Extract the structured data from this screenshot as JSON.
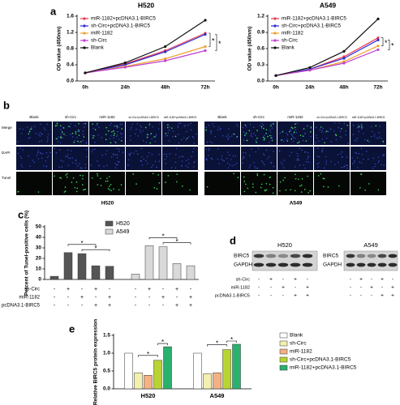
{
  "panel_labels": [
    "a",
    "b",
    "c",
    "d",
    "e"
  ],
  "chart_data": [
    {
      "type": "line",
      "title": "H520",
      "ylabel": "OD value (450nm)",
      "categories": [
        "0h",
        "24h",
        "48h",
        "72h"
      ],
      "ylim": [
        0,
        1.6
      ],
      "yticks": [
        {
          "value": 0,
          "label": "0.0"
        },
        {
          "value": 0.4,
          "label": "0.4"
        },
        {
          "value": 0.8,
          "label": "0.8"
        },
        {
          "value": 1.2,
          "label": "1.2"
        },
        {
          "value": 1.6,
          "label": "1.6"
        }
      ],
      "series": [
        {
          "name": "miR-1182+pcDNA3.1-BIRC5",
          "color": "#e8384f",
          "values": [
            0.2,
            0.42,
            0.75,
            1.18
          ]
        },
        {
          "name": "sh-Circ+pcDNA3.1-BIRC5",
          "color": "#2b2bd6",
          "values": [
            0.2,
            0.4,
            0.72,
            1.15
          ]
        },
        {
          "name": "miR-1182",
          "color": "#f0a030",
          "values": [
            0.2,
            0.36,
            0.55,
            0.85
          ]
        },
        {
          "name": "sh-Circ",
          "color": "#c040d0",
          "values": [
            0.2,
            0.34,
            0.5,
            0.75
          ]
        },
        {
          "name": "Blank",
          "color": "#111111",
          "values": [
            0.2,
            0.45,
            0.85,
            1.5
          ]
        }
      ],
      "annotations": [
        "*",
        "*"
      ]
    },
    {
      "type": "line",
      "title": "A549",
      "ylabel": "OD value (450nm)",
      "categories": [
        "0h",
        "24h",
        "48h",
        "72h"
      ],
      "ylim": [
        0,
        1.2
      ],
      "yticks": [
        {
          "value": 0,
          "label": "0.0"
        },
        {
          "value": 0.3,
          "label": "0.3"
        },
        {
          "value": 0.6,
          "label": "0.6"
        },
        {
          "value": 0.9,
          "label": "0.9"
        },
        {
          "value": 1.2,
          "label": "1.2"
        }
      ],
      "series": [
        {
          "name": "miR-1182+pcDNA3.1-BIRC5",
          "color": "#e8384f",
          "values": [
            0.1,
            0.22,
            0.45,
            0.8
          ]
        },
        {
          "name": "sh-Circ+pcDNA3.1-BIRC5",
          "color": "#2b2bd6",
          "values": [
            0.1,
            0.22,
            0.42,
            0.76
          ]
        },
        {
          "name": "miR-1182",
          "color": "#f0a030",
          "values": [
            0.1,
            0.2,
            0.36,
            0.65
          ]
        },
        {
          "name": "sh-Circ",
          "color": "#c040d0",
          "values": [
            0.1,
            0.2,
            0.33,
            0.58
          ]
        },
        {
          "name": "Blank",
          "color": "#111111",
          "values": [
            0.1,
            0.25,
            0.55,
            1.15
          ]
        }
      ],
      "annotations": [
        "*",
        "*"
      ]
    },
    {
      "type": "bar",
      "ylabel": "Percent of Tunel-positive cells (%)",
      "ylim": [
        0,
        50
      ],
      "yticks": [
        0,
        10,
        20,
        30,
        40,
        50
      ],
      "series": [
        {
          "name": "H520",
          "color": "#555555",
          "values": [
            3,
            25.5,
            24.5,
            13,
            12.5
          ]
        },
        {
          "name": "A549",
          "color": "#d9d9d9",
          "values": [
            5,
            32,
            31,
            15,
            13
          ]
        }
      ],
      "conditions": [
        {
          "name": "sh-Circ",
          "signs": [
            "-",
            "+",
            "-",
            "+",
            "-"
          ]
        },
        {
          "name": "miR-1182",
          "signs": [
            "-",
            "-",
            "+",
            "-",
            "+"
          ]
        },
        {
          "name": "pcDNA3.1-BIRC5",
          "signs": [
            "-",
            "-",
            "-",
            "+",
            "+"
          ]
        }
      ],
      "annotations": [
        "*",
        "*",
        "*",
        "*"
      ]
    },
    {
      "type": "bar",
      "ylabel": "Relative BIRC5 protein expression",
      "categories": [
        "H520",
        "A549"
      ],
      "ylim": [
        0,
        1.5
      ],
      "yticks": [
        {
          "value": 0,
          "label": "0.0"
        },
        {
          "value": 0.5,
          "label": "0.5"
        },
        {
          "value": 1,
          "label": "1.0"
        },
        {
          "value": 1.5,
          "label": "1.5"
        }
      ],
      "series": [
        {
          "name": "Blank",
          "color": "#ffffff",
          "values": [
            1,
            1
          ]
        },
        {
          "name": "sh-Circ",
          "color": "#f3f0b0",
          "values": [
            0.45,
            0.42
          ]
        },
        {
          "name": "miR-1182",
          "color": "#f4b183",
          "values": [
            0.38,
            0.45
          ]
        },
        {
          "name": "sh-Circ+pcDNA3.1-BIRC5",
          "color": "#b8d432",
          "values": [
            0.8,
            1.1
          ]
        },
        {
          "name": "miR-1182+pcDNA3.1-BIRC5",
          "color": "#2bb06e",
          "values": [
            1.18,
            1.25
          ]
        }
      ],
      "annotations": [
        "*",
        "*",
        "*",
        "*"
      ]
    }
  ],
  "image_panels": {
    "rows": [
      "Merge",
      "DAPI",
      "Tunel"
    ],
    "columns": [
      "Blank",
      "sh-Circ",
      "miR-1182",
      "sh-Circ+pcDNA3.1-BIRC5",
      "miR-1182+pcDNA3.1-BIRC5"
    ],
    "cell_lines": [
      "H520",
      "A549"
    ]
  },
  "western_blot": {
    "cell_lines": [
      "H520",
      "A549"
    ],
    "proteins": [
      "BIRC5",
      "GAPDH"
    ],
    "conditions": [
      {
        "name": "sh-Circ",
        "signs": [
          "-",
          "+",
          "-",
          "+",
          "-"
        ]
      },
      {
        "name": "miR-1182",
        "signs": [
          "-",
          "-",
          "+",
          "-",
          "+"
        ]
      },
      {
        "name": "pcDNA3.1-BIRC5",
        "signs": [
          "-",
          "-",
          "-",
          "+",
          "+"
        ]
      }
    ]
  }
}
